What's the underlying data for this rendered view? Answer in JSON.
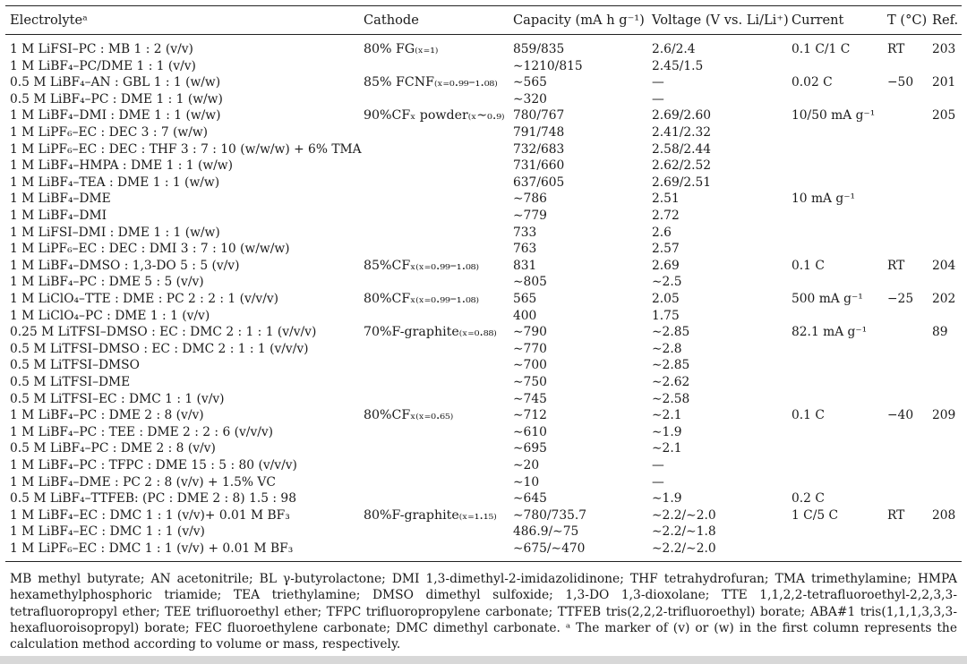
{
  "header": {
    "electrolyte": "Electrolyteᵃ",
    "cathode": "Cathode",
    "capacity": "Capacity (mA h g⁻¹)",
    "voltage": "Voltage (V vs. Li/Li⁺)",
    "current": "Current",
    "temp": "T (°C)",
    "ref": "Ref."
  },
  "rows": [
    {
      "e": "1 M LiFSI–PC : MB 1 : 2 (v/v)",
      "c": "80% FG₍ₓ₌₁₎",
      "cap": "859/835",
      "v": "2.6/2.4",
      "i": "0.1 C/1 C",
      "t": "RT",
      "r": "203"
    },
    {
      "e": "1 M LiBF₄–PC/DME 1 : 1 (v/v)",
      "c": "",
      "cap": "∼1210/815",
      "v": "2.45/1.5",
      "i": "",
      "t": "",
      "r": ""
    },
    {
      "e": "0.5 M LiBF₄–AN : GBL 1 : 1 (w/w)",
      "c": "85% FCNF₍ₓ₌₀.₉₉–₁.₀₈₎",
      "cap": "∼565",
      "v": "—",
      "i": "0.02 C",
      "t": "−50",
      "r": "201"
    },
    {
      "e": "0.5 M LiBF₄–PC : DME 1 : 1 (w/w)",
      "c": "",
      "cap": "∼320",
      "v": "—",
      "i": "",
      "t": "",
      "r": ""
    },
    {
      "e": "1 M LiBF₄–DMI : DME 1 : 1 (w/w)",
      "c": "90%CFₓ powder₍ₓ∼₀.₉₎",
      "cap": "780/767",
      "v": "2.69/2.60",
      "i": "10/50 mA g⁻¹",
      "t": "",
      "r": "205"
    },
    {
      "e": "1 M LiPF₆–EC : DEC 3 : 7 (w/w)",
      "c": "",
      "cap": "791/748",
      "v": "2.41/2.32",
      "i": "",
      "t": "",
      "r": ""
    },
    {
      "e": "1 M LiPF₆–EC : DEC : THF 3 : 7 : 10 (w/w/w) + 6% TMA",
      "c": "",
      "cap": "732/683",
      "v": "2.58/2.44",
      "i": "",
      "t": "",
      "r": ""
    },
    {
      "e": "1 M LiBF₄–HMPA : DME 1 : 1 (w/w)",
      "c": "",
      "cap": "731/660",
      "v": "2.62/2.52",
      "i": "",
      "t": "",
      "r": ""
    },
    {
      "e": "1 M LiBF₄–TEA : DME 1 : 1 (w/w)",
      "c": "",
      "cap": "637/605",
      "v": "2.69/2.51",
      "i": "",
      "t": "",
      "r": ""
    },
    {
      "e": "1 M LiBF₄–DME",
      "c": "",
      "cap": "∼786",
      "v": "2.51",
      "i": "10 mA g⁻¹",
      "t": "",
      "r": ""
    },
    {
      "e": "1 M LiBF₄–DMI",
      "c": "",
      "cap": "∼779",
      "v": "2.72",
      "i": "",
      "t": "",
      "r": ""
    },
    {
      "e": "1 M LiFSI–DMI : DME 1 : 1 (w/w)",
      "c": "",
      "cap": "733",
      "v": "2.6",
      "i": "",
      "t": "",
      "r": ""
    },
    {
      "e": "1 M LiPF₆–EC : DEC : DMI 3 : 7 : 10 (w/w/w)",
      "c": "",
      "cap": "763",
      "v": "2.57",
      "i": "",
      "t": "",
      "r": ""
    },
    {
      "e": "1 M LiBF₄–DMSO : 1,3-DO 5 : 5 (v/v)",
      "c": "85%CFₓ₍ₓ₌₀.₉₉–₁.₀₈₎",
      "cap": "831",
      "v": "2.69",
      "i": "0.1 C",
      "t": "RT",
      "r": "204"
    },
    {
      "e": "1 M LiBF₄–PC : DME 5 : 5 (v/v)",
      "c": "",
      "cap": "∼805",
      "v": "∼2.5",
      "i": "",
      "t": "",
      "r": ""
    },
    {
      "e": "1 M LiClO₄–TTE : DME : PC 2 : 2 : 1 (v/v/v)",
      "c": "80%CFₓ₍ₓ₌₀.₉₉–₁.₀₈₎",
      "cap": "565",
      "v": "2.05",
      "i": "500 mA g⁻¹",
      "t": "−25",
      "r": "202"
    },
    {
      "e": "1 M LiClO₄–PC : DME 1 : 1 (v/v)",
      "c": "",
      "cap": "400",
      "v": "1.75",
      "i": "",
      "t": "",
      "r": ""
    },
    {
      "e": "0.25 M LiTFSI–DMSO : EC : DMC 2 : 1 : 1 (v/v/v)",
      "c": "70%F-graphite₍ₓ₌₀.₈₈₎",
      "cap": "∼790",
      "v": "∼2.85",
      "i": "82.1 mA g⁻¹",
      "t": "",
      "r": "89"
    },
    {
      "e": "0.5 M LiTFSI–DMSO : EC : DMC 2 : 1 : 1 (v/v/v)",
      "c": "",
      "cap": "∼770",
      "v": "∼2.8",
      "i": "",
      "t": "",
      "r": ""
    },
    {
      "e": "0.5 M LiTFSI–DMSO",
      "c": "",
      "cap": "∼700",
      "v": "∼2.85",
      "i": "",
      "t": "",
      "r": ""
    },
    {
      "e": "0.5 M LiTFSI–DME",
      "c": "",
      "cap": "∼750",
      "v": "∼2.62",
      "i": "",
      "t": "",
      "r": ""
    },
    {
      "e": "0.5 M LiTFSI–EC : DMC 1 : 1 (v/v)",
      "c": "",
      "cap": "∼745",
      "v": "∼2.58",
      "i": "",
      "t": "",
      "r": ""
    },
    {
      "e": "1 M LiBF₄–PC : DME 2 : 8 (v/v)",
      "c": "80%CFₓ₍ₓ₌₀.₆₅₎",
      "cap": "∼712",
      "v": "∼2.1",
      "i": "0.1 C",
      "t": "−40",
      "r": "209"
    },
    {
      "e": "1 M LiBF₄–PC : TEE : DME 2 : 2 : 6 (v/v/v)",
      "c": "",
      "cap": "∼610",
      "v": "∼1.9",
      "i": "",
      "t": "",
      "r": ""
    },
    {
      "e": "0.5 M LiBF₄–PC : DME 2 : 8 (v/v)",
      "c": "",
      "cap": "∼695",
      "v": "∼2.1",
      "i": "",
      "t": "",
      "r": ""
    },
    {
      "e": "1 M LiBF₄–PC : TFPC : DME 15 : 5 : 80 (v/v/v)",
      "c": "",
      "cap": "∼20",
      "v": "—",
      "i": "",
      "t": "",
      "r": ""
    },
    {
      "e": "1 M LiBF₄–DME : PC 2 : 8 (v/v) + 1.5% VC",
      "c": "",
      "cap": "∼10",
      "v": "—",
      "i": "",
      "t": "",
      "r": ""
    },
    {
      "e": "0.5 M LiBF₄–TTFEB: (PC : DME 2 : 8) 1.5 : 98",
      "c": "",
      "cap": "∼645",
      "v": "∼1.9",
      "i": "0.2 C",
      "t": "",
      "r": ""
    },
    {
      "e": "1 M LiBF₄–EC : DMC 1 : 1 (v/v)+ 0.01 M BF₃",
      "c": "80%F-graphite₍ₓ₌₁.₁₅₎",
      "cap": "∼780/735.7",
      "v": "∼2.2/∼2.0",
      "i": "1 C/5 C",
      "t": "RT",
      "r": "208"
    },
    {
      "e": "1 M LiBF₄–EC : DMC 1 : 1 (v/v)",
      "c": "",
      "cap": "486.9/∼75",
      "v": "∼2.2/∼1.8",
      "i": "",
      "t": "",
      "r": ""
    },
    {
      "e": "1 M LiPF₆–EC : DMC 1 : 1 (v/v) + 0.01 M BF₃",
      "c": "",
      "cap": "∼675/∼470",
      "v": "∼2.2/∼2.0",
      "i": "",
      "t": "",
      "r": ""
    }
  ],
  "footnote": "MB methyl butyrate; AN acetonitrile; BL γ-butyrolactone; DMI 1,3-dimethyl-2-imidazolidinone; THF tetrahydrofuran; TMA trimethylamine; HMPA hexamethylphosphoric triamide; TEA triethylamine; DMSO dimethyl sulfoxide; 1,3-DO 1,3-dioxolane; TTE 1,1,2,2-tetrafluoroethyl-2,2,3,3-tetrafluoropropyl ether; TEE trifluoroethyl ether; TFPC trifluoropropylene carbonate; TTFEB tris(2,2,2-trifluoroethyl) borate; ABA#1 tris(1,1,1,3,3,3-hexafluoroisopropyl) borate; FEC fluoroethylene carbonate; DMC dimethyl carbonate. ᵃ The marker of (v) or (w) in the first column represents the calculation method according to volume or mass, respectively."
}
